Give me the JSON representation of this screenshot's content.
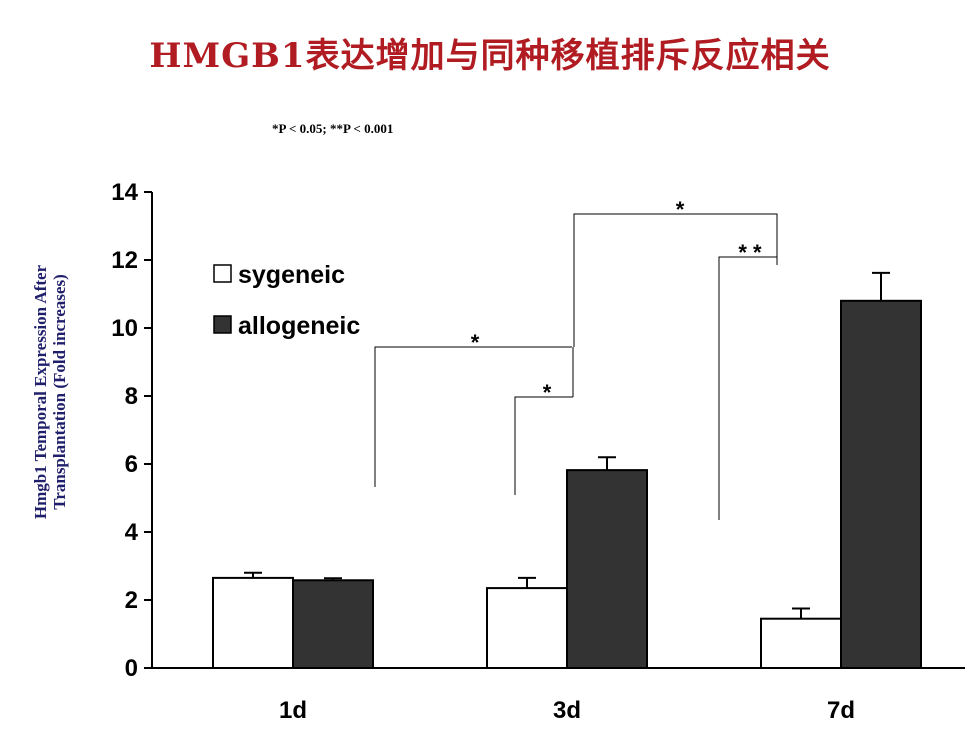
{
  "title": "HMGB1表达增加与同种移植排斥反应相关",
  "significance_note": "*P < 0.05; **P < 0.001",
  "colors": {
    "title": "#b01c22",
    "ylabel": "#1f1f6b",
    "syngeneic_fill": "#ffffff",
    "allogeneic_fill": "#333333"
  },
  "chart_data": {
    "type": "bar",
    "title": "",
    "xlabel": "",
    "ylabel_lines": [
      "Hmgb1 Temporal Expression After",
      "Transplantation (Fold increases)"
    ],
    "categories": [
      "1d",
      "3d",
      "7d"
    ],
    "ylim": [
      0,
      14
    ],
    "yticks": [
      "0",
      "2",
      "4",
      "6",
      "8",
      "10",
      "12",
      "14"
    ],
    "series": [
      {
        "name": "sygeneic",
        "values": [
          2.65,
          2.35,
          1.45
        ],
        "errors": [
          0.15,
          0.3,
          0.3
        ]
      },
      {
        "name": "allogeneic",
        "values": [
          2.58,
          5.82,
          10.8
        ],
        "errors": [
          0.06,
          0.38,
          0.82
        ]
      }
    ],
    "legend": "top-left",
    "grid": false,
    "significance": [
      {
        "label": "*",
        "between": [
          "1d allogeneic",
          "3d allogeneic"
        ]
      },
      {
        "label": "*",
        "between": [
          "3d sygeneic",
          "3d allogeneic"
        ]
      },
      {
        "label": "*",
        "between": [
          "3d allogeneic",
          "7d allogeneic"
        ]
      },
      {
        "label": "* *",
        "between": [
          "7d sygeneic",
          "7d allogeneic"
        ]
      }
    ]
  }
}
